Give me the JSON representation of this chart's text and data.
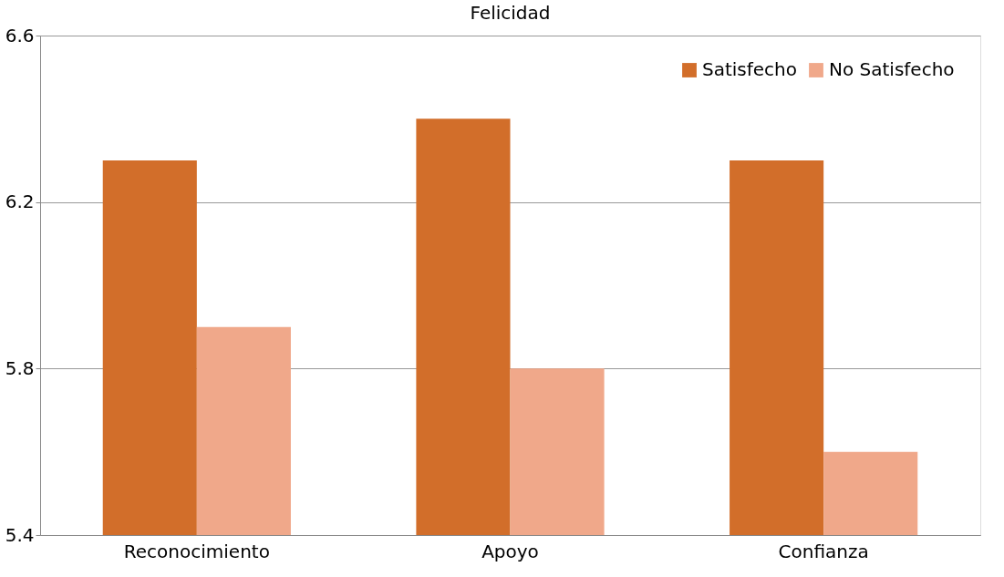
{
  "chart_data": {
    "type": "bar",
    "title": "Felicidad",
    "categories": [
      "Reconocimiento",
      "Apoyo",
      "Confianza"
    ],
    "series": [
      {
        "name": "Satisfecho",
        "color": "#d26e2a",
        "values": [
          6.3,
          6.4,
          6.3
        ]
      },
      {
        "name": "No Satisfecho",
        "color": "#f0a88a",
        "values": [
          5.9,
          5.8,
          5.6
        ]
      }
    ],
    "ylim": [
      5.4,
      6.6
    ],
    "yticks": [
      5.4,
      5.8,
      6.2,
      6.6
    ],
    "grid": "y",
    "legend": "top right"
  }
}
